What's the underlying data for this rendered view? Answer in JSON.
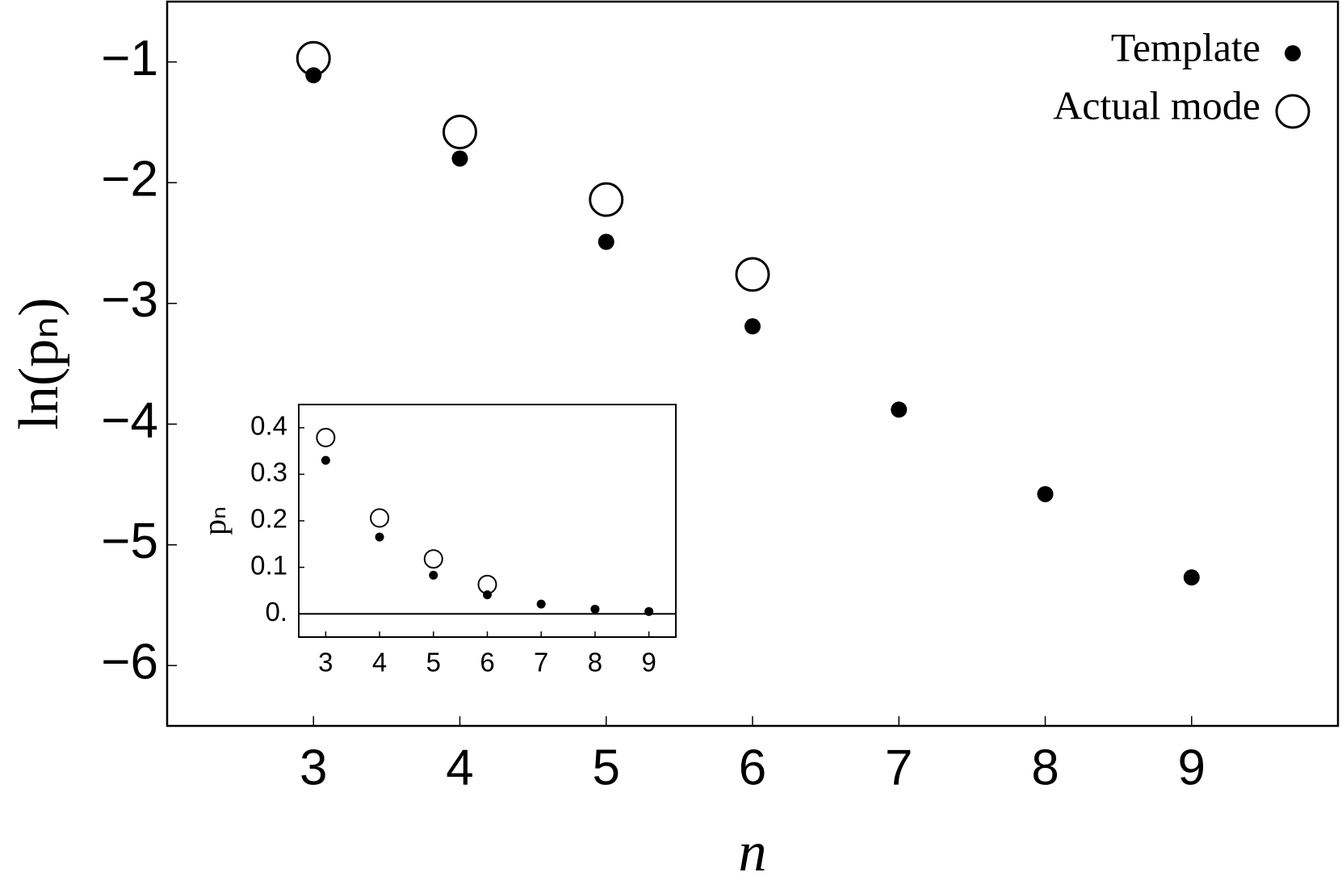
{
  "chart_data": [
    {
      "type": "scatter",
      "xlabel": "n",
      "ylabel": "ln(pₙ)",
      "x": [
        3,
        4,
        5,
        6,
        7,
        8,
        9
      ],
      "series": [
        {
          "name": "Template",
          "color": "#000000",
          "marker": "filled",
          "values": [
            -1.11,
            -1.8,
            -2.49,
            -3.19,
            -3.88,
            -4.58,
            -5.27
          ]
        },
        {
          "name": "Actual mode",
          "color": "#000000",
          "marker": "open",
          "values": [
            -0.97,
            -1.58,
            -2.14,
            -2.76,
            null,
            null,
            null
          ]
        }
      ],
      "xlim": [
        2,
        10
      ],
      "ylim": [
        -6.5,
        -0.5
      ],
      "xticks": [
        3,
        4,
        5,
        6,
        7,
        8,
        9
      ],
      "yticks": [
        {
          "value": -1,
          "label": "−1"
        },
        {
          "value": -2,
          "label": "−2"
        },
        {
          "value": -3,
          "label": "−3"
        },
        {
          "value": -4,
          "label": "−4"
        },
        {
          "value": -5,
          "label": "−5"
        },
        {
          "value": -6,
          "label": "−6"
        }
      ],
      "legend": "upper right",
      "grid": false
    },
    {
      "type": "scatter",
      "ylabel": "pₙ",
      "x": [
        3,
        4,
        5,
        6,
        7,
        8,
        9
      ],
      "series": [
        {
          "color": "#000000",
          "marker": "filled",
          "values": [
            0.33,
            0.165,
            0.083,
            0.041,
            0.021,
            0.01,
            0.005
          ]
        },
        {
          "color": "#000000",
          "marker": "open",
          "values": [
            0.379,
            0.206,
            0.118,
            0.063,
            null,
            null,
            null
          ]
        }
      ],
      "xlim": [
        2.5,
        9.5
      ],
      "ylim": [
        -0.05,
        0.45
      ],
      "xticks": [
        3,
        4,
        5,
        6,
        7,
        8,
        9
      ],
      "yticks": [
        {
          "value": 0,
          "label": "0."
        },
        0.1,
        0.2,
        0.3,
        0.4
      ],
      "grid": false
    }
  ]
}
